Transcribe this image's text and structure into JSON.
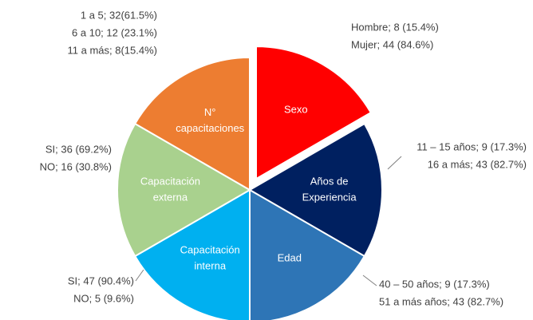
{
  "chart_data": {
    "type": "pie",
    "categories": [
      [
        "Sexo"
      ],
      [
        "Años de",
        "Experiencia"
      ],
      [
        "Edad"
      ],
      [
        "Capacitación",
        "interna"
      ],
      [
        "Capacitación",
        "externa"
      ],
      [
        "N°",
        "capacitaciones"
      ]
    ],
    "values": [
      16.7,
      16.7,
      16.7,
      16.7,
      16.7,
      16.7
    ],
    "colors": [
      "#ff0000",
      "#002060",
      "#2e75b6",
      "#00b0f0",
      "#a9d18e",
      "#ed7d31"
    ],
    "explode": [
      true,
      false,
      false,
      false,
      false,
      false
    ],
    "annotations": [
      [
        "Hombre; 8 (15.4%)",
        "Mujer; 44 (84.6%)"
      ],
      [
        "11 – 15 años; 9 (17.3%)",
        "16 a más; 43 (82.7%)"
      ],
      [
        "40 – 50 años; 9 (17.3%)",
        "51 a más años;  43 (82.7%)"
      ],
      [
        "SI; 47 (90.4%)",
        "NO; 5 (9.6%)"
      ],
      [
        "SI; 36 (69.2%)",
        "NO; 16 (30.8%)"
      ],
      [
        "1 a 5; 32(61.5%)",
        "6 a 10; 12 (23.1%)",
        "11 a más; 8(15.4%)"
      ]
    ]
  }
}
